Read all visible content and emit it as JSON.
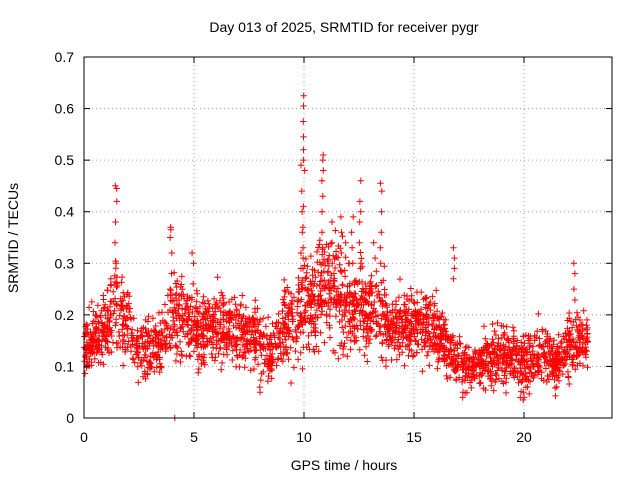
{
  "chart_data": {
    "type": "scatter",
    "title": "Day 013 of 2025, SRMTID for receiver pygr",
    "xlabel": "GPS time / hours",
    "ylabel": "SRMTID / TECUs",
    "xlim": [
      0,
      24
    ],
    "ylim": [
      0,
      0.7
    ],
    "x_ticks": [
      0,
      5,
      10,
      15,
      20
    ],
    "x_tick_labels": [
      "0",
      "5",
      "10",
      "15",
      "20"
    ],
    "y_ticks": [
      0,
      0.1,
      0.2,
      0.3,
      0.4,
      0.5,
      0.6,
      0.7
    ],
    "y_tick_labels": [
      "0",
      "0.1",
      "0.2",
      "0.3",
      "0.4",
      "0.5",
      "0.6",
      "0.7"
    ],
    "grid": true,
    "marker": "+",
    "marker_color": "#ff0000",
    "data_range": {
      "x_min": 0.0,
      "x_max": 22.9
    },
    "profile": {
      "x": [
        0.0,
        1.0,
        1.4,
        2.0,
        2.5,
        3.0,
        3.5,
        4.0,
        4.3,
        5.0,
        6.0,
        7.0,
        8.0,
        8.5,
        9.0,
        9.5,
        10.0,
        10.5,
        11.0,
        11.5,
        12.0,
        12.5,
        13.0,
        13.5,
        14.0,
        15.0,
        15.5,
        16.0,
        16.5,
        17.0,
        17.5,
        18.0,
        19.0,
        20.0,
        20.5,
        21.0,
        21.5,
        22.0,
        22.5,
        22.9
      ],
      "mean": [
        0.14,
        0.17,
        0.22,
        0.18,
        0.13,
        0.14,
        0.15,
        0.19,
        0.21,
        0.17,
        0.18,
        0.17,
        0.15,
        0.12,
        0.17,
        0.19,
        0.21,
        0.23,
        0.26,
        0.24,
        0.22,
        0.21,
        0.21,
        0.2,
        0.18,
        0.19,
        0.18,
        0.17,
        0.14,
        0.11,
        0.1,
        0.11,
        0.12,
        0.11,
        0.12,
        0.12,
        0.11,
        0.13,
        0.16,
        0.15
      ],
      "spread": [
        0.05,
        0.06,
        0.08,
        0.07,
        0.05,
        0.05,
        0.06,
        0.08,
        0.08,
        0.06,
        0.06,
        0.06,
        0.06,
        0.05,
        0.06,
        0.07,
        0.08,
        0.09,
        0.1,
        0.09,
        0.08,
        0.08,
        0.08,
        0.07,
        0.06,
        0.06,
        0.06,
        0.06,
        0.05,
        0.04,
        0.04,
        0.04,
        0.05,
        0.05,
        0.05,
        0.05,
        0.04,
        0.05,
        0.05,
        0.05
      ]
    },
    "spikes": [
      {
        "x": 1.45,
        "y": [
          0.26,
          0.3,
          0.34,
          0.38,
          0.42,
          0.445,
          0.45
        ]
      },
      {
        "x": 3.95,
        "y": [
          0.25,
          0.28,
          0.32,
          0.35,
          0.37,
          0.365
        ]
      },
      {
        "x": 4.15,
        "y": [
          0.0
        ]
      },
      {
        "x": 4.95,
        "y": [
          0.26,
          0.3,
          0.32
        ]
      },
      {
        "x": 8.0,
        "y": [
          0.05,
          0.06
        ]
      },
      {
        "x": 9.9,
        "y": [
          0.32,
          0.36,
          0.4,
          0.44,
          0.49
        ]
      },
      {
        "x": 9.95,
        "y": [
          0.29,
          0.31,
          0.33,
          0.37,
          0.41
        ]
      },
      {
        "x": 10.0,
        "y": [
          0.48,
          0.5,
          0.52,
          0.545,
          0.575,
          0.605,
          0.625
        ]
      },
      {
        "x": 10.85,
        "y": [
          0.3,
          0.33,
          0.36,
          0.4,
          0.43,
          0.46,
          0.48,
          0.5,
          0.51
        ]
      },
      {
        "x": 11.3,
        "y": [
          0.3,
          0.34,
          0.38
        ]
      },
      {
        "x": 11.7,
        "y": [
          0.32,
          0.36,
          0.39
        ]
      },
      {
        "x": 12.2,
        "y": [
          0.3,
          0.33,
          0.36,
          0.39
        ]
      },
      {
        "x": 12.55,
        "y": [
          0.3,
          0.34,
          0.38,
          0.4,
          0.42,
          0.46
        ]
      },
      {
        "x": 13.5,
        "y": [
          0.3,
          0.33,
          0.36,
          0.4,
          0.44,
          0.455
        ]
      },
      {
        "x": 13.2,
        "y": [
          0.31,
          0.34
        ]
      },
      {
        "x": 16.8,
        "y": [
          0.27,
          0.29,
          0.31,
          0.33
        ]
      },
      {
        "x": 17.2,
        "y": [
          0.04,
          0.05
        ]
      },
      {
        "x": 20.0,
        "y": [
          0.035,
          0.04,
          0.05
        ]
      },
      {
        "x": 22.3,
        "y": [
          0.25,
          0.28,
          0.3
        ]
      }
    ]
  }
}
